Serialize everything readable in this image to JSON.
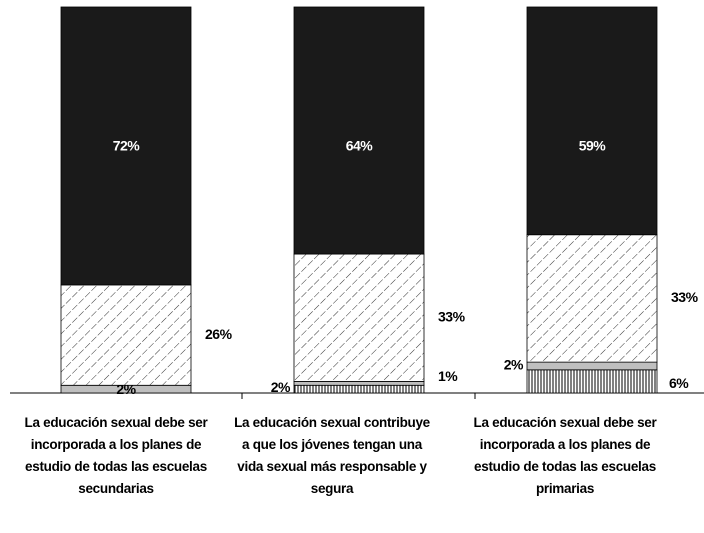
{
  "chart_data": {
    "type": "stacked_bar",
    "categories": [
      "La educación sexual debe ser incorporada a los planes de estudio de todas las escuelas secundarias",
      "La educación sexual contribuye a que los jóvenes tengan una vida sexual más responsable y segura",
      "La educación sexual debe ser incorporada a los planes de estudio de todas las escuelas primarias"
    ],
    "ylim": [
      0,
      100
    ],
    "series": [
      {
        "pattern": "vertical",
        "color": "#000000",
        "values": [
          null,
          2,
          6
        ],
        "value_labels": [
          null,
          "2%",
          "6%"
        ]
      },
      {
        "color": "#bfbfbf",
        "values": [
          2,
          1,
          2
        ],
        "value_labels": [
          "2%",
          "1%",
          "2%"
        ]
      },
      {
        "pattern": "diagonal",
        "color": "#000000",
        "values": [
          26,
          33,
          33
        ],
        "value_labels": [
          "26%",
          "33%",
          "33%"
        ]
      },
      {
        "color": "#1a1a1a",
        "values": [
          72,
          64,
          59
        ],
        "value_labels": [
          "72%",
          "64%",
          "59%"
        ]
      }
    ]
  }
}
